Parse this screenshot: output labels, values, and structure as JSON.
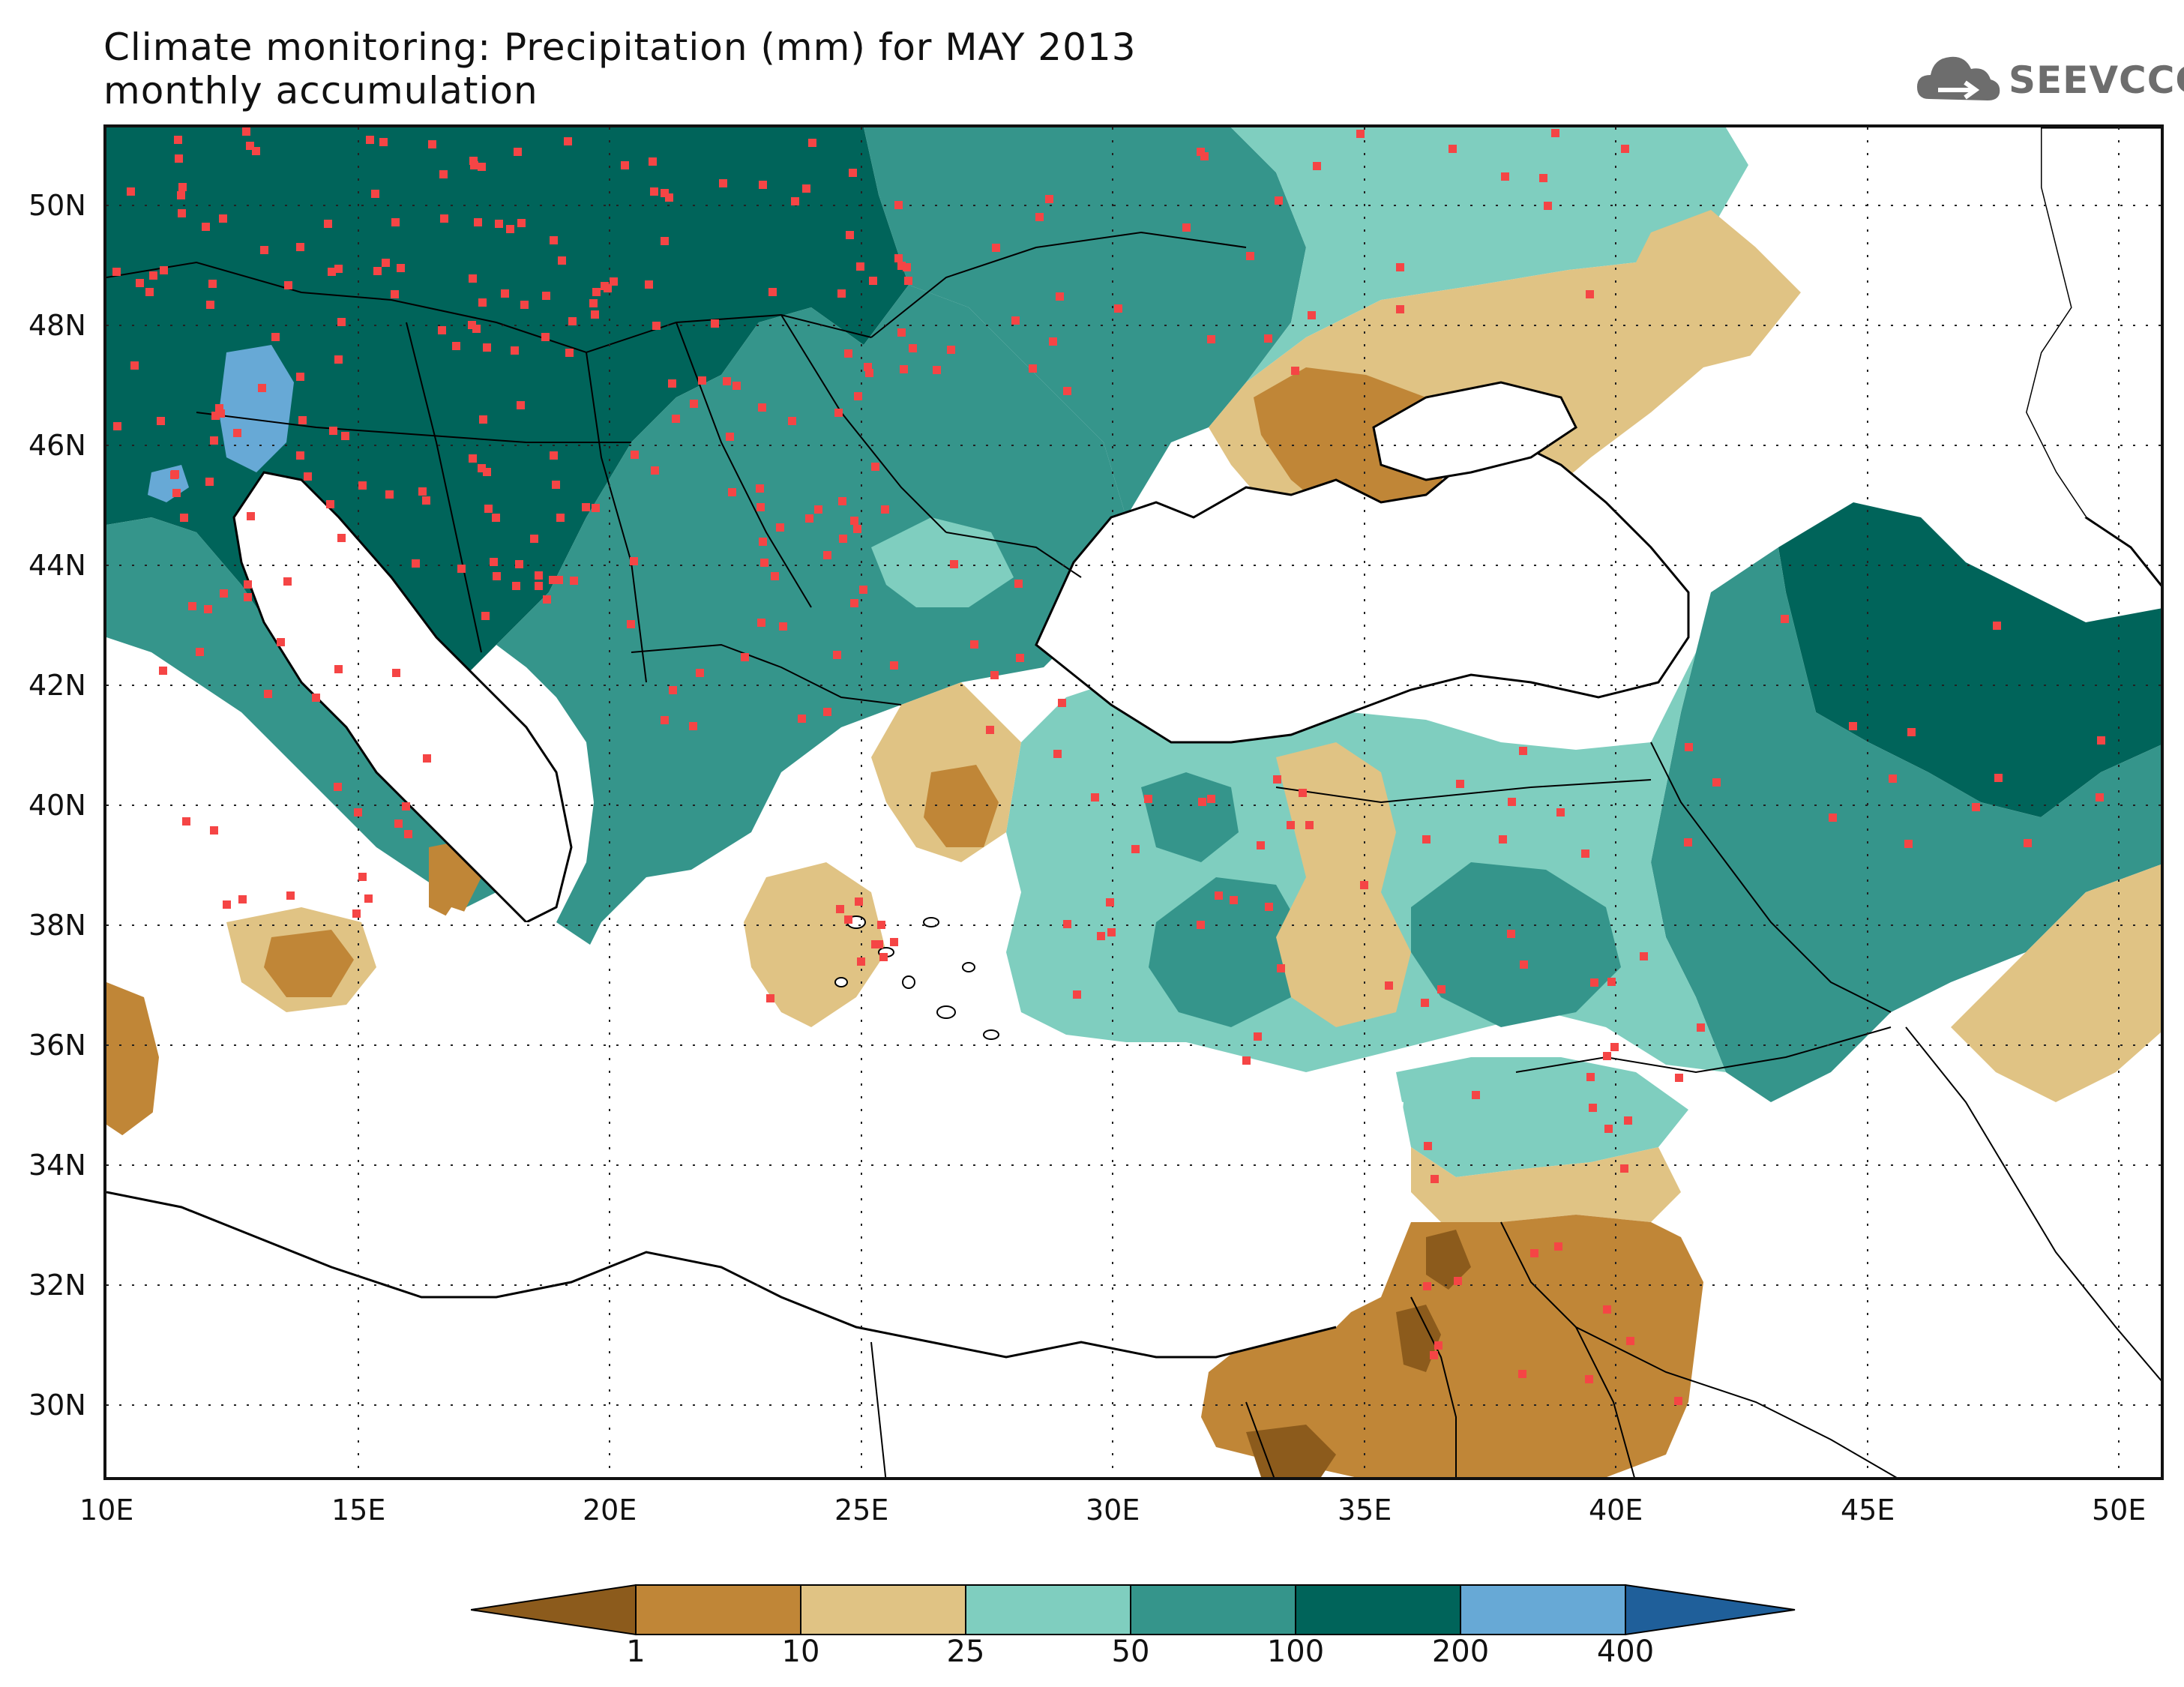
{
  "title": {
    "line1": "Climate monitoring: Precipitation (mm) for MAY 2013",
    "line2": "monthly accumulation"
  },
  "logo": {
    "text": "SEEVCCC",
    "icon": "cloud-icon"
  },
  "axes": {
    "lat_labels": [
      "50N",
      "48N",
      "46N",
      "44N",
      "42N",
      "40N",
      "38N",
      "36N",
      "34N",
      "32N",
      "30N"
    ],
    "lon_labels": [
      "10E",
      "15E",
      "20E",
      "25E",
      "30E",
      "35E",
      "40E",
      "45E",
      "50E"
    ]
  },
  "colorbar": {
    "labels": [
      "1",
      "10",
      "25",
      "50",
      "100",
      "200",
      "400"
    ],
    "colors": [
      "#8c5b1c",
      "#c08637",
      "#e0c384",
      "#7fcebf",
      "#35958b",
      "#00645a",
      "#67a9d6",
      "#1f5f9a"
    ]
  },
  "map": {
    "extent": {
      "lon": [
        10,
        51
      ],
      "lat": [
        29,
        51.5
      ]
    },
    "station_color": "#f54545",
    "coast_color": "#000000"
  }
}
